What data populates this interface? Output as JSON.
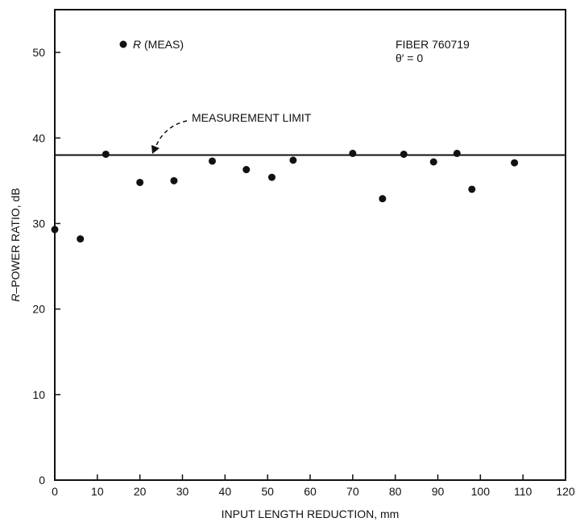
{
  "chart_data": {
    "type": "scatter",
    "xlabel": "INPUT LENGTH REDUCTION, mm",
    "ylabel": {
      "italic": "R",
      "rest": "–POWER RATIO, dB"
    },
    "xlim": [
      0,
      120
    ],
    "ylim": [
      0,
      55
    ],
    "xticks": [
      0,
      10,
      20,
      30,
      40,
      50,
      60,
      70,
      80,
      90,
      100,
      110,
      120
    ],
    "yticks": [
      0,
      10,
      20,
      30,
      40,
      50
    ],
    "grid": false,
    "legend": {
      "italic": "R",
      "rest": " (MEAS)",
      "placement": "top-left"
    },
    "annotation_fiber": {
      "line1": "FIBER 760719",
      "line2": "θ′ = 0"
    },
    "reference_line": {
      "label": "MEASUREMENT LIMIT",
      "y": 38
    },
    "series": [
      {
        "name": "R (MEAS)",
        "points": [
          [
            0,
            29.3
          ],
          [
            6,
            28.2
          ],
          [
            12,
            38.1
          ],
          [
            20,
            34.8
          ],
          [
            28,
            35.0
          ],
          [
            37,
            37.3
          ],
          [
            45,
            36.3
          ],
          [
            51,
            35.4
          ],
          [
            56,
            37.4
          ],
          [
            70,
            38.2
          ],
          [
            77,
            32.9
          ],
          [
            82,
            38.1
          ],
          [
            89,
            37.2
          ],
          [
            94.5,
            38.2
          ],
          [
            98,
            34.0
          ],
          [
            108,
            37.1
          ]
        ]
      }
    ]
  }
}
